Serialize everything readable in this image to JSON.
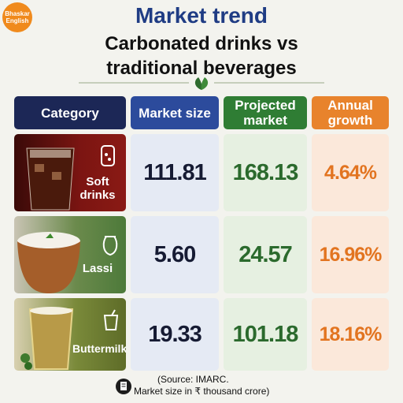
{
  "logo": {
    "line1": "Bhaskar",
    "line2": "English"
  },
  "header": {
    "title": "Market trend",
    "subtitle_line1": "Carbonated drinks vs",
    "subtitle_line2": "traditional beverages"
  },
  "table": {
    "columns": [
      "Category",
      "Market size",
      "Projected market",
      "Annual growth"
    ],
    "rows": [
      [
        "Soft drinks",
        "111.81",
        "168.13",
        "4.64%"
      ],
      [
        "Lassi",
        "5.60",
        "24.57",
        "16.96%"
      ],
      [
        "Buttermilk",
        "19.33",
        "101.18",
        "18.16%"
      ]
    ]
  },
  "footer": {
    "line1": "(Source: IMARC.",
    "line2": "Market size in ₹ thousand crore)"
  }
}
